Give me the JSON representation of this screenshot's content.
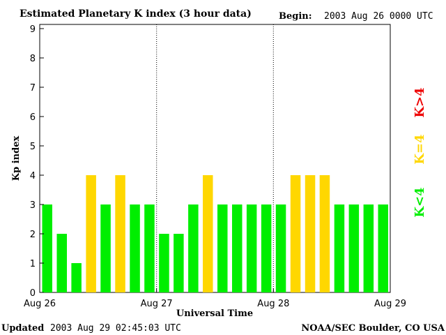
{
  "chart_data": {
    "type": "bar",
    "title": "Estimated Planetary K index (3 hour data)",
    "begin_label": "Begin:",
    "begin_value": "2003 Aug 26 0000 UTC",
    "xlabel": "Universal Time",
    "ylabel": "Kp index",
    "ylim": [
      0,
      9
    ],
    "yticks": [
      "0",
      "1",
      "2",
      "3",
      "4",
      "5",
      "6",
      "7",
      "8",
      "9"
    ],
    "xticks": [
      "Aug 26",
      "Aug 27",
      "Aug 28",
      "Aug 29"
    ],
    "values": [
      3,
      2,
      1,
      4,
      3,
      4,
      3,
      3,
      2,
      2,
      3,
      4,
      3,
      3,
      3,
      3,
      3,
      4,
      4,
      4,
      3,
      3,
      3,
      3
    ],
    "legend": [
      {
        "label": "K<4",
        "color": "#00ee00"
      },
      {
        "label": "K=4",
        "color": "#ffd700"
      },
      {
        "label": "K>4",
        "color": "#ee0000"
      }
    ]
  },
  "footer": {
    "updated_label": "Updated",
    "updated_value": "2003 Aug 29 02:45:03 UTC",
    "source": "NOAA/SEC Boulder, CO USA"
  },
  "colors": {
    "low": "#00ee00",
    "equal": "#ffd700",
    "high": "#ee0000"
  }
}
